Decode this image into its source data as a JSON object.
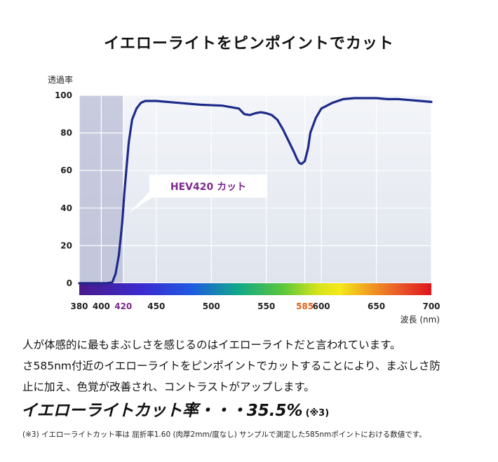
{
  "title": "イエローライトをピンポイントでカット",
  "chart_data": {
    "type": "line",
    "ylabel": "透過率",
    "xlabel": "波長 (nm)",
    "x_ticks": [
      380,
      400,
      420,
      450,
      500,
      550,
      585,
      600,
      650,
      700
    ],
    "x_tick_colors": {
      "420": "#7a2a8c",
      "585": "#e0621c"
    },
    "y_ticks": [
      0,
      20,
      40,
      60,
      80,
      100
    ],
    "xlim": [
      380,
      700
    ],
    "ylim": [
      0,
      100
    ],
    "grid": true,
    "shaded_region": [
      380,
      420
    ],
    "annotation": "HEV420 カット",
    "series": [
      {
        "x": [
          380,
          390,
          400,
          405,
          410,
          413,
          416,
          419,
          421,
          423,
          425,
          428,
          432,
          436,
          440,
          450,
          470,
          490,
          510,
          525,
          530,
          535,
          540,
          545,
          550,
          555,
          560,
          565,
          570,
          575,
          578,
          580,
          582,
          585,
          588,
          590,
          595,
          600,
          610,
          620,
          630,
          640,
          650,
          660,
          670,
          680,
          690,
          700
        ],
        "y": [
          0,
          0,
          0,
          0,
          0.5,
          5,
          15,
          32,
          48,
          62,
          75,
          87,
          93,
          96,
          97,
          97,
          96,
          95,
          94.5,
          93,
          90,
          89.5,
          90.5,
          91,
          90.5,
          89.5,
          87,
          82,
          76,
          70,
          66,
          64,
          63.5,
          65,
          72,
          80,
          88,
          93,
          96,
          98,
          98.5,
          98.5,
          98.5,
          98,
          98,
          97.5,
          97,
          96.5
        ]
      }
    ]
  },
  "description_lines": [
    "人が体感的に最もまぶしさを感じるのはイエローライトだと言われています。",
    "さ585nm付近のイエローライトをピンポイントでカットすることにより、まぶしさ防",
    "止に加え、色覚が改善され、コントラストがアップします。"
  ],
  "highlight": {
    "text": "イエローライトカット率・・・35.5%",
    "note": "(※3)"
  },
  "footnote": "(※3) イエローライトカット率は 屈折率1.60 (肉厚2mm/度なし) サンプルで測定した585nmポイントにおける数値です。"
}
